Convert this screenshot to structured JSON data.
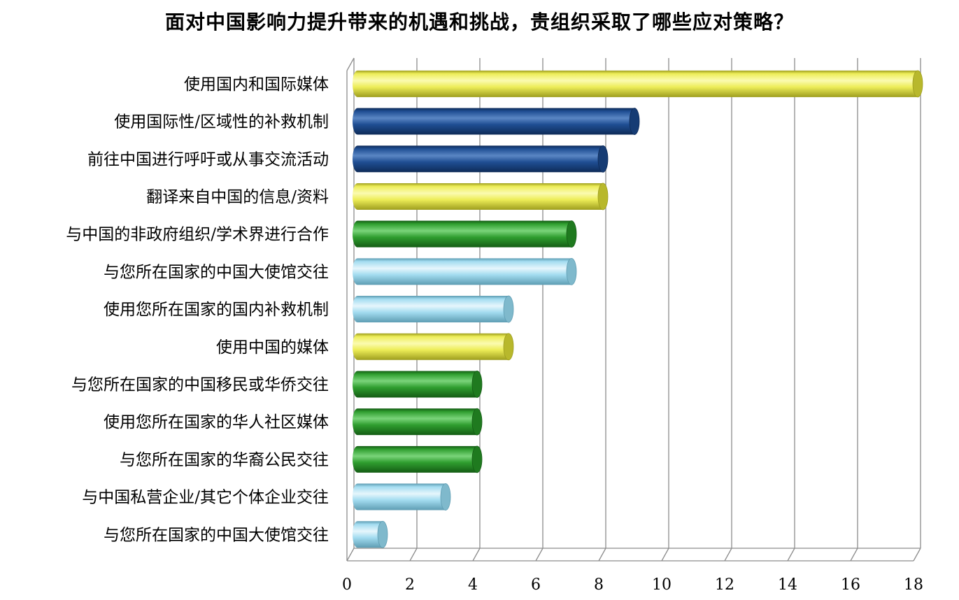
{
  "chart_data": {
    "type": "bar",
    "orientation": "horizontal",
    "title": "面对中国影响力提升带来的机遇和挑战，贵组织采取了哪些应对策略？",
    "xlabel": "",
    "ylabel": "",
    "xlim": [
      0,
      18
    ],
    "x_ticks": [
      "0",
      "2",
      "4",
      "6",
      "8",
      "10",
      "12",
      "14",
      "16",
      "18"
    ],
    "grid": true,
    "style": "3d-cylinder",
    "categories": [
      "使用国内和国际媒体",
      "使用国际性/区域性的补救机制",
      "前往中国进行呼吁或从事交流活动",
      "翻译来自中国的信息/资料",
      "与中国的非政府组织/学术界进行合作",
      "与您所在国家的中国大使馆交往",
      "使用您所在国家的国内补救机制",
      "使用中国的媒体",
      "与您所在国家的中国移民或华侨交往",
      "使用您所在国家的华人社区媒体",
      "与您所在国家的华裔公民交往",
      "与中国私营企业/其它个体企业交往",
      "与您所在国家的中国大使馆交往"
    ],
    "values": [
      18,
      9,
      8,
      8,
      7,
      7,
      5,
      5,
      4,
      4,
      4,
      3,
      1
    ],
    "bar_colors": [
      "yellow",
      "navy",
      "navy",
      "yellow",
      "green",
      "lightblue",
      "lightblue",
      "yellow",
      "green",
      "green",
      "green",
      "lightblue",
      "lightblue"
    ]
  },
  "palette": {
    "yellow": {
      "light": "#fbfbb0",
      "mid": "#eded58",
      "dark": "#9e9e1e",
      "cap": "#b8b82c"
    },
    "navy": {
      "light": "#5a86c4",
      "mid": "#1f4e93",
      "dark": "#0e2b58",
      "cap": "#163c74"
    },
    "green": {
      "light": "#7ad47a",
      "mid": "#2f9e2f",
      "dark": "#145c14",
      "cap": "#1f7a1f"
    },
    "lightblue": {
      "light": "#e6f6fc",
      "mid": "#a3dcf0",
      "dark": "#5e9db3",
      "cap": "#7fb9cc"
    },
    "grid": "#8c8c8c",
    "wall": "#ffffff"
  }
}
